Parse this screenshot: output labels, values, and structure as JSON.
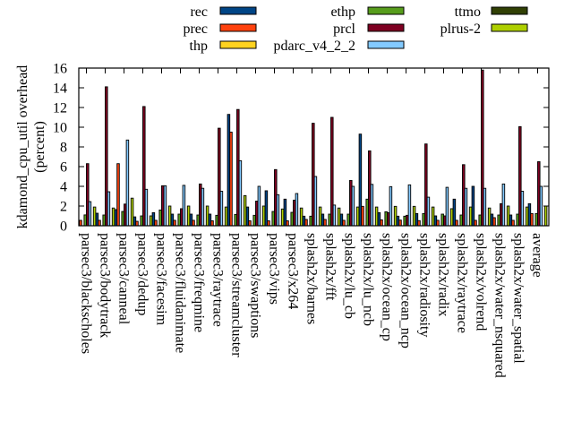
{
  "chart_data": {
    "type": "bar",
    "title": "",
    "xlabel": "",
    "ylabel": "kdamond_cpu_util overhead",
    "ylabel2": "(percent)",
    "ylim": [
      0,
      16
    ],
    "yticks": [
      0,
      2,
      4,
      6,
      8,
      10,
      12,
      14,
      16
    ],
    "legend_position": "top",
    "categories": [
      "parsec3/blackscholes",
      "parsec3/bodytrack",
      "parsec3/canneal",
      "parsec3/dedup",
      "parsec3/facesim",
      "parsec3/fluidanimate",
      "parsec3/freqmine",
      "parsec3/raytrace",
      "parsec3/streamcluster",
      "parsec3/swaptions",
      "parsec3/vips",
      "parsec3/x264",
      "splash2x/barnes",
      "splash2x/fft",
      "splash2x/lu_cb",
      "splash2x/lu_ncb",
      "splash2x/ocean_cp",
      "splash2x/ocean_ncp",
      "splash2x/radiosity",
      "splash2x/radix",
      "splash2x/raytrace",
      "splash2x/volrend",
      "splash2x/water_nsquared",
      "splash2x/water_spatial",
      "average"
    ],
    "series": [
      {
        "name": "rec",
        "color": "#004586",
        "values": [
          0,
          1.27,
          1.64,
          0.9,
          1.33,
          1.18,
          1.18,
          1.18,
          11.3,
          1.9,
          3.55,
          2.7,
          0.97,
          1.18,
          1.18,
          9.3,
          1.33,
          0.97,
          1.24,
          1.0,
          2.7,
          4.0,
          1.18,
          1.09,
          2.24
        ]
      },
      {
        "name": "prec",
        "color": "#ff420e",
        "values": [
          0.55,
          0.55,
          6.3,
          0.45,
          0.55,
          0.55,
          0.55,
          0.5,
          9.5,
          0.5,
          0.5,
          0.5,
          0.64,
          0.64,
          0.55,
          1.97,
          0.6,
          0.57,
          0.52,
          0.55,
          0.55,
          0.55,
          0.82,
          0.55,
          1.24
        ]
      },
      {
        "name": "thp",
        "color": "#ffd320",
        "values": [
          0,
          0,
          0,
          0,
          0,
          0,
          0,
          0,
          0,
          0,
          0,
          0,
          0,
          0,
          0,
          0,
          0,
          0,
          0,
          0,
          0,
          0,
          0,
          0,
          0
        ]
      },
      {
        "name": "ethp",
        "color": "#579d1c",
        "values": [
          1.1,
          1.09,
          1.45,
          1.0,
          1.6,
          1.18,
          1.09,
          1.06,
          1.15,
          1.06,
          1.45,
          1.36,
          0.97,
          1.18,
          1.18,
          2.7,
          1.42,
          0.97,
          1.24,
          1.18,
          1.09,
          1.09,
          1.09,
          1.18,
          1.24
        ]
      },
      {
        "name": "prcl",
        "color": "#7e0021",
        "values": [
          6.3,
          14.1,
          2.2,
          12.1,
          4.06,
          1.73,
          4.24,
          9.9,
          11.8,
          2.5,
          5.7,
          2.6,
          10.4,
          11.0,
          4.6,
          7.6,
          1.33,
          1.06,
          8.3,
          1.0,
          6.2,
          15.8,
          2.24,
          10.06,
          6.5
        ]
      },
      {
        "name": "pdarc_v4_2_2",
        "color": "#83caff",
        "values": [
          2.45,
          3.45,
          8.7,
          3.7,
          4.06,
          4.1,
          3.8,
          3.5,
          6.6,
          4.0,
          3.15,
          3.27,
          5.0,
          2.1,
          4.0,
          4.2,
          3.97,
          4.15,
          2.9,
          3.9,
          3.8,
          3.8,
          4.24,
          3.5,
          4.0
        ]
      },
      {
        "name": "ttmo",
        "color": "#314004",
        "values": [
          0,
          0,
          0,
          0,
          0,
          0,
          0,
          0,
          0,
          0,
          0,
          0,
          0,
          0,
          0,
          0,
          0,
          0,
          0,
          0,
          0,
          0,
          0,
          0,
          0
        ]
      },
      {
        "name": "plrus-2",
        "color": "#aecf00",
        "values": [
          1.9,
          1.8,
          2.8,
          1.0,
          2.0,
          2.0,
          2.0,
          1.9,
          3.06,
          2.0,
          1.7,
          1.8,
          1.9,
          1.8,
          1.9,
          1.9,
          1.97,
          1.97,
          1.9,
          1.73,
          1.9,
          1.8,
          2.0,
          1.9,
          2.0
        ]
      }
    ]
  }
}
